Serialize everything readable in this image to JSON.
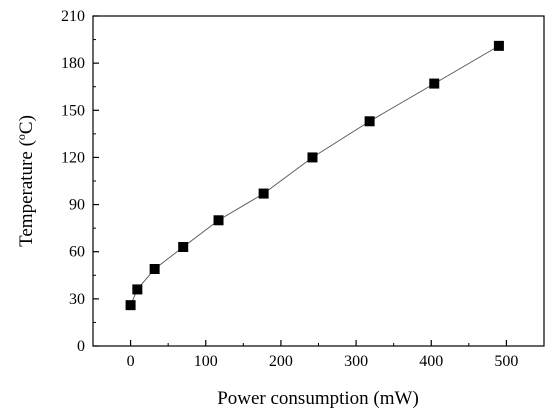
{
  "chart_data": {
    "type": "scatter",
    "title": "",
    "xlabel": "Power consumption (mW)",
    "ylabel_prefix": "Temperature (",
    "ylabel_sup": "o",
    "ylabel_suffix": "C)",
    "xlim": [
      -50,
      550
    ],
    "ylim": [
      0,
      210
    ],
    "xticks": [
      0,
      100,
      200,
      300,
      400,
      500
    ],
    "yticks": [
      0,
      30,
      60,
      90,
      120,
      150,
      180,
      210
    ],
    "grid": false,
    "legend": "none",
    "marker": "filled-square",
    "line": "connected-thin",
    "colors": {
      "marker": "#000000",
      "line": "#555555",
      "axis": "#000000"
    },
    "series": [
      {
        "x": [
          0,
          9,
          32,
          70,
          117,
          177,
          242,
          318,
          404,
          490
        ],
        "y": [
          26,
          36,
          49,
          63,
          80,
          97,
          120,
          143,
          167,
          191
        ]
      }
    ]
  }
}
